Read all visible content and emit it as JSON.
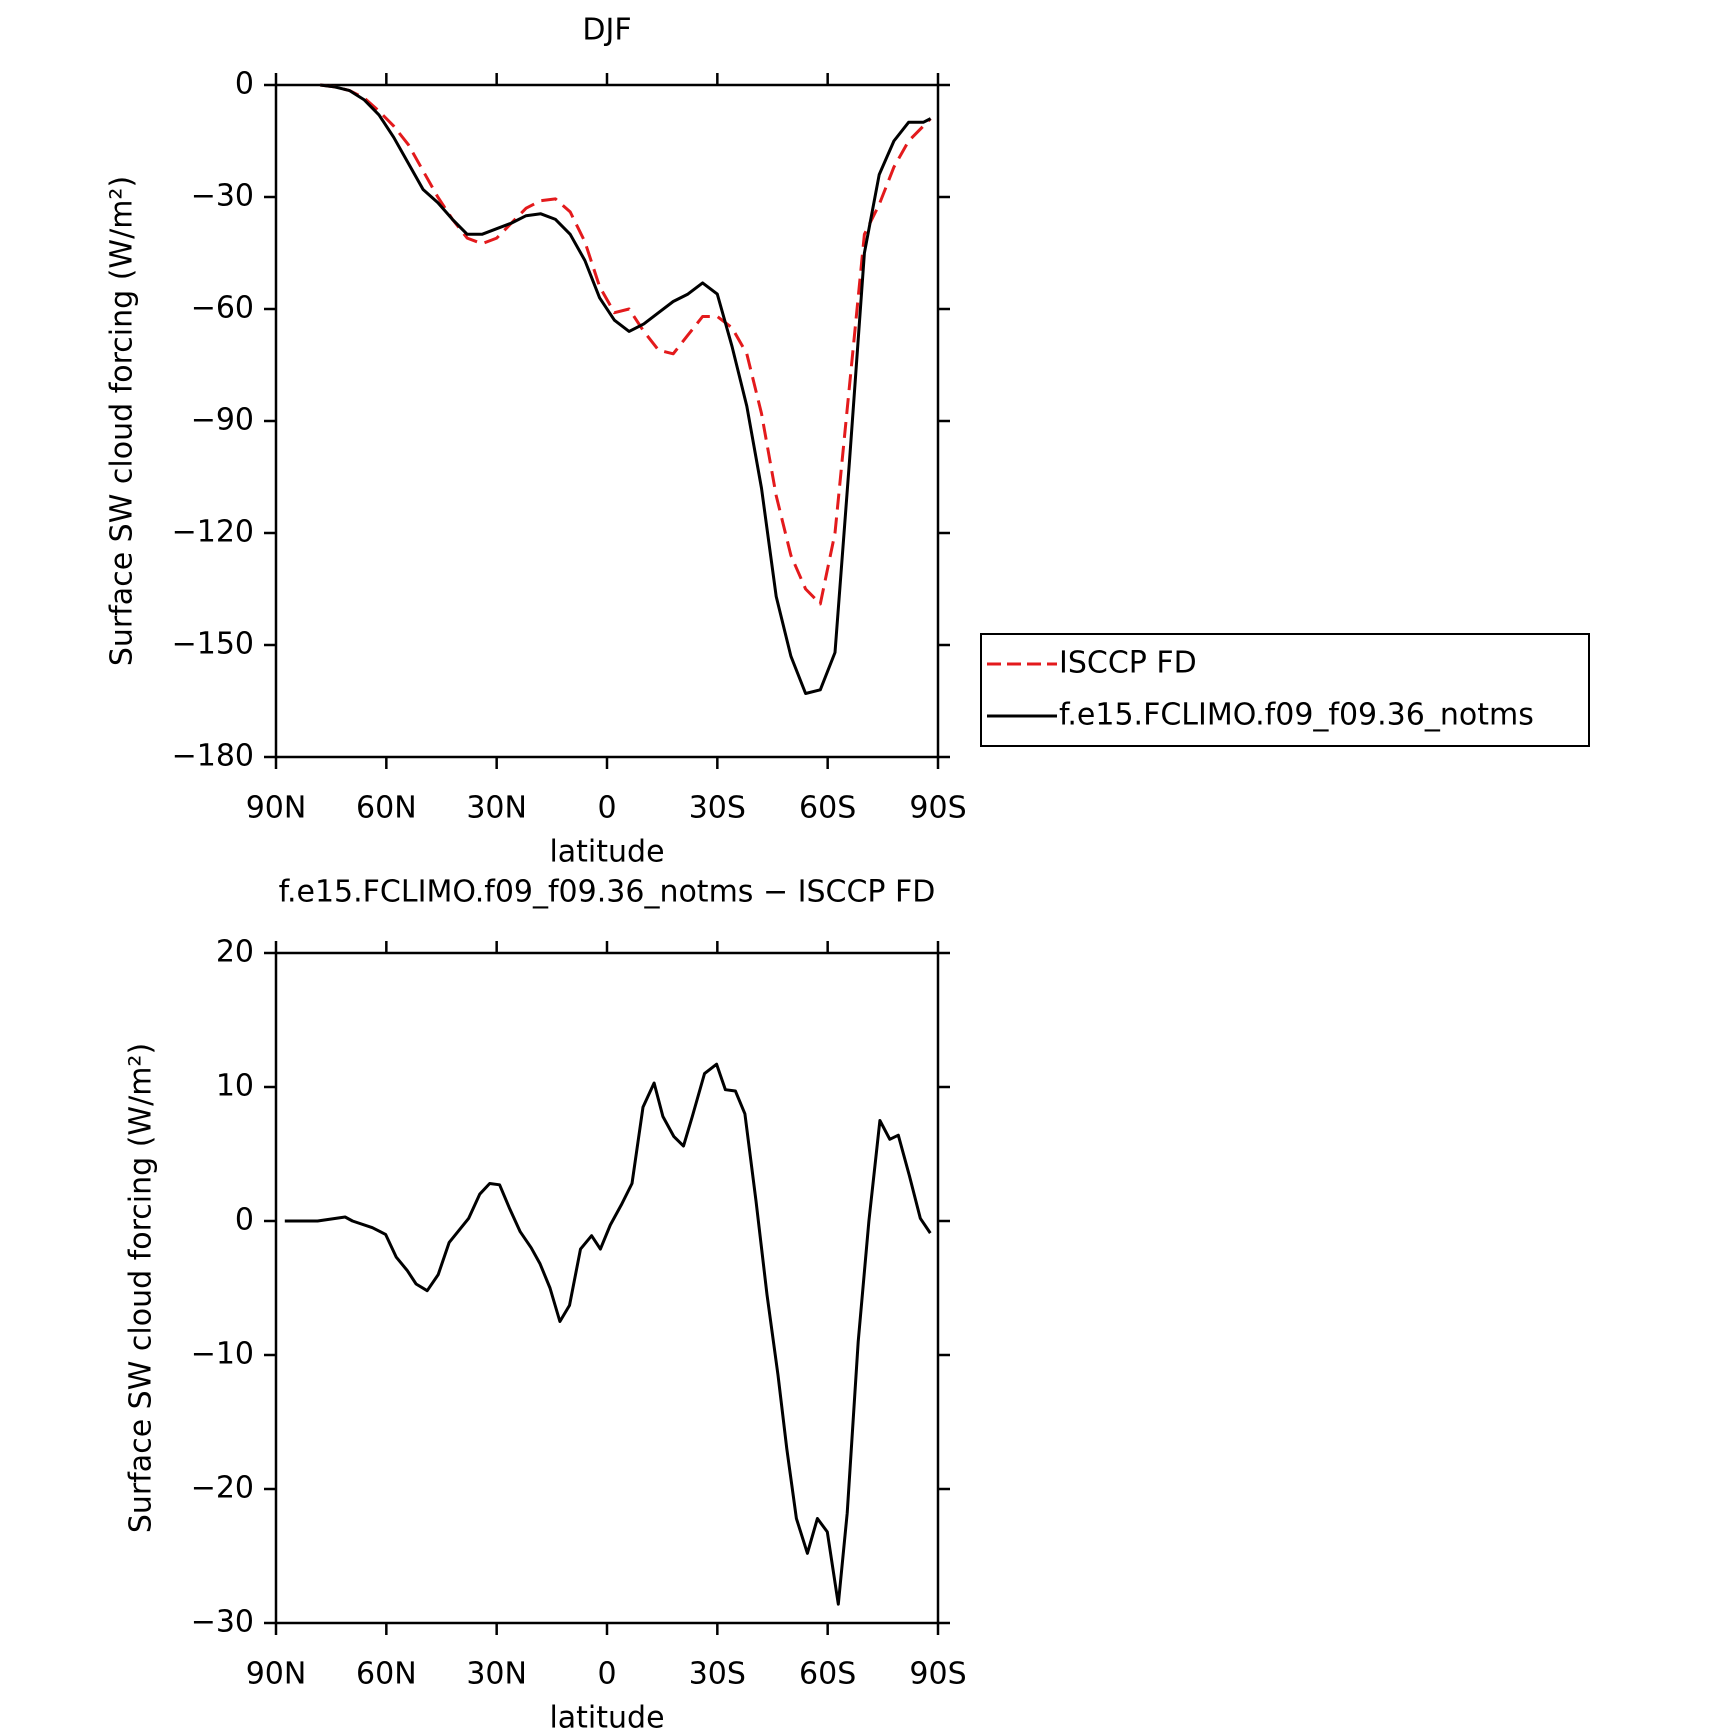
{
  "chart_data": [
    {
      "type": "line",
      "title": "DJF",
      "x_label": "latitude",
      "y_label": "Surface SW cloud forcing (W/m²)",
      "xlim": [
        90,
        -90
      ],
      "xticks": [
        {
          "value": 90,
          "label": "90N"
        },
        {
          "value": 60,
          "label": "60N"
        },
        {
          "value": 30,
          "label": "30N"
        },
        0,
        {
          "value": -30,
          "label": "30S"
        },
        {
          "value": -60,
          "label": "60S"
        },
        {
          "value": -90,
          "label": "90S"
        }
      ],
      "ylim": [
        -180,
        0
      ],
      "yticks": [
        0,
        {
          "value": -30,
          "label": "−30"
        },
        {
          "value": -60,
          "label": "−60"
        },
        {
          "value": -90,
          "label": "−90"
        },
        {
          "value": -120,
          "label": "−120"
        },
        {
          "value": -150,
          "label": "−150"
        },
        {
          "value": -180,
          "label": "−180"
        }
      ],
      "legend": "outside right",
      "series": [
        {
          "name": "ISCCP FD",
          "color": "#e31a1c",
          "dashed": true,
          "x": [
            78,
            74,
            70,
            66,
            62,
            58,
            54,
            50,
            46,
            42,
            38,
            34,
            30,
            26,
            22,
            18,
            14,
            10,
            6,
            2,
            -2,
            -6,
            -10,
            -14,
            -18,
            -22,
            -26,
            -30,
            -34,
            -38,
            -42,
            -46,
            -50,
            -54,
            -58,
            -62,
            -66,
            -70,
            -74,
            -78,
            -82,
            -86,
            -88
          ],
          "values": [
            0,
            -0.5,
            -1.5,
            -3.5,
            -7,
            -11,
            -16,
            -23,
            -30,
            -36,
            -41,
            -42.5,
            -41,
            -37,
            -33,
            -31,
            -30.5,
            -34,
            -42,
            -54,
            -61,
            -60,
            -66,
            -71,
            -72,
            -67,
            -62,
            -62,
            -65,
            -72,
            -88,
            -110,
            -126,
            -135,
            -139,
            -120,
            -80,
            -40,
            -32,
            -22,
            -15,
            -11,
            -9
          ]
        },
        {
          "name": "f.e15.FCLIMO.f09_f09.36_notms",
          "color": "#000000",
          "dashed": false,
          "x": [
            78,
            74,
            70,
            66,
            62,
            58,
            54,
            50,
            46,
            42,
            38,
            34,
            30,
            26,
            22,
            18,
            14,
            10,
            6,
            2,
            -2,
            -6,
            -10,
            -14,
            -18,
            -22,
            -26,
            -30,
            -34,
            -38,
            -42,
            -46,
            -50,
            -54,
            -58,
            -62,
            -66,
            -70,
            -74,
            -78,
            -82,
            -86,
            -88
          ],
          "values": [
            0,
            -0.5,
            -1.5,
            -4,
            -8,
            -14,
            -21,
            -28,
            -31.5,
            -36,
            -40,
            -40,
            -38.5,
            -37,
            -35,
            -34.5,
            -36,
            -40,
            -47,
            -57,
            -63,
            -66,
            -64,
            -61,
            -58,
            -56,
            -53,
            -56,
            -70,
            -86,
            -108,
            -137,
            -153,
            -163,
            -162,
            -152,
            -100,
            -45,
            -24,
            -15,
            -10,
            -10,
            -9
          ]
        }
      ]
    },
    {
      "type": "line",
      "title": "f.e15.FCLIMO.f09_f09.36_notms − ISCCP FD",
      "x_label": "latitude",
      "y_label": "Surface SW cloud forcing (W/m²)",
      "xlim": [
        90,
        -90
      ],
      "xticks": [
        {
          "value": 90,
          "label": "90N"
        },
        {
          "value": 60,
          "label": "60N"
        },
        {
          "value": 30,
          "label": "30N"
        },
        0,
        {
          "value": -30,
          "label": "30S"
        },
        {
          "value": -60,
          "label": "60S"
        },
        {
          "value": -90,
          "label": "90S"
        }
      ],
      "ylim": [
        -30,
        20
      ],
      "yticks": [
        20,
        10,
        0,
        {
          "value": -10,
          "label": "−10"
        },
        {
          "value": -20,
          "label": "−20"
        },
        {
          "value": -30,
          "label": "−30"
        }
      ],
      "color": "#000000",
      "x": [
        87.6,
        78.7,
        71.2,
        69.2,
        63.8,
        60.2,
        57.3,
        54.3,
        51.9,
        48.9,
        45.9,
        42.9,
        37.6,
        34.6,
        31.9,
        29.2,
        26.6,
        23.6,
        20.6,
        18.2,
        15.5,
        12.8,
        10.2,
        7.2,
        4.2,
        1.8,
        -0.9,
        -3.9,
        -6.8,
        -9.8,
        -12.8,
        -15.2,
        -18.2,
        -20.8,
        -23.2,
        -26.5,
        -29.8,
        -32.2,
        -34.9,
        -37.5,
        -40.5,
        -43.5,
        -46.5,
        -48.9,
        -51.5,
        -54.5,
        -57.2,
        -59.9,
        -62.9,
        -65.3,
        -68.3,
        -71.2,
        -74.2,
        -76.9,
        -79.2,
        -82.2,
        -85.2,
        -87.9
      ],
      "values": [
        0,
        0,
        0.3,
        0,
        -0.5,
        -1,
        -2.7,
        -3.7,
        -4.7,
        -5.2,
        -4,
        -1.6,
        0.2,
        2,
        2.8,
        2.7,
        1,
        -0.8,
        -2,
        -3.2,
        -5,
        -7.5,
        -6.3,
        -2.1,
        -1.1,
        -2.1,
        -0.3,
        1.2,
        2.8,
        8.5,
        10.3,
        7.8,
        6.3,
        5.6,
        7.8,
        11,
        11.7,
        9.8,
        9.7,
        8,
        1.5,
        -5.5,
        -11.5,
        -17,
        -22.2,
        -24.8,
        -22.2,
        -23.2,
        -28.6,
        -21.8,
        -9,
        0,
        7.5,
        6.1,
        6.4,
        3.4,
        0.2,
        -0.9
      ]
    }
  ]
}
